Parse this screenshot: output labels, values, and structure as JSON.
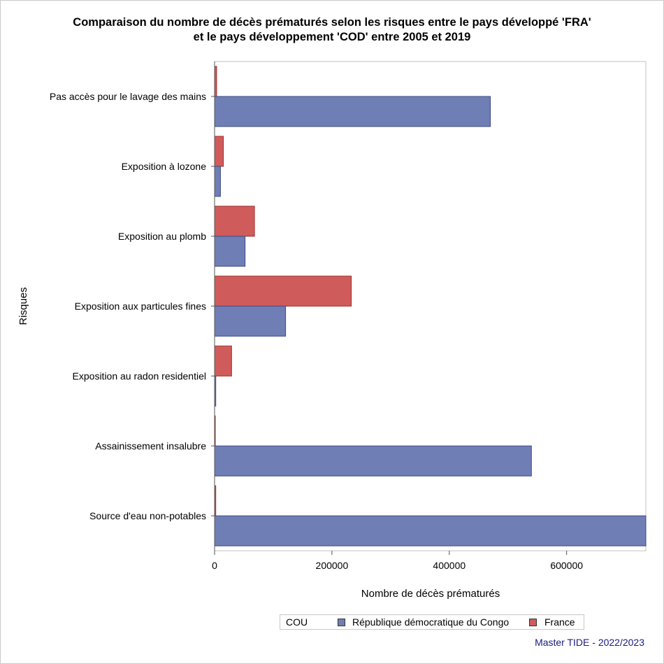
{
  "chart_data": {
    "type": "bar",
    "orientation": "horizontal",
    "title_line1": "Comparaison du nombre de décès prématurés selon les risques entre le pays développé 'FRA'",
    "title_line2": "et le pays développement 'COD' entre 2005 et 2019",
    "xlabel": "Nombre de décès prématurés",
    "ylabel": "Risques",
    "xlim": [
      0,
      735000
    ],
    "xticks": [
      "0",
      "200000",
      "400000",
      "600000"
    ],
    "xtick_values": [
      0,
      200000,
      400000,
      600000
    ],
    "categories": [
      "Pas accès pour le lavage des mains",
      "Exposition à lozone",
      "Exposition au plomb",
      "Exposition aux particules fines",
      "Exposition au radon residentiel",
      "Assainissement insalubre",
      "Source d'eau non-potables"
    ],
    "series": [
      {
        "name": "France",
        "color": "#d05b5b",
        "values": [
          3500,
          15000,
          68000,
          233000,
          29000,
          600,
          2000
        ]
      },
      {
        "name": "République démocratique du Congo",
        "color": "#6f7eb5",
        "values": [
          470000,
          10000,
          52000,
          121000,
          2000,
          540000,
          735000
        ]
      }
    ],
    "legend": {
      "title": "COU",
      "position": "bottom",
      "entries": [
        {
          "label": "République démocratique du Congo",
          "color": "#6f7eb5"
        },
        {
          "label": "France",
          "color": "#d05b5b"
        }
      ]
    },
    "grid": false
  },
  "footer": "Master TIDE - 2022/2023"
}
